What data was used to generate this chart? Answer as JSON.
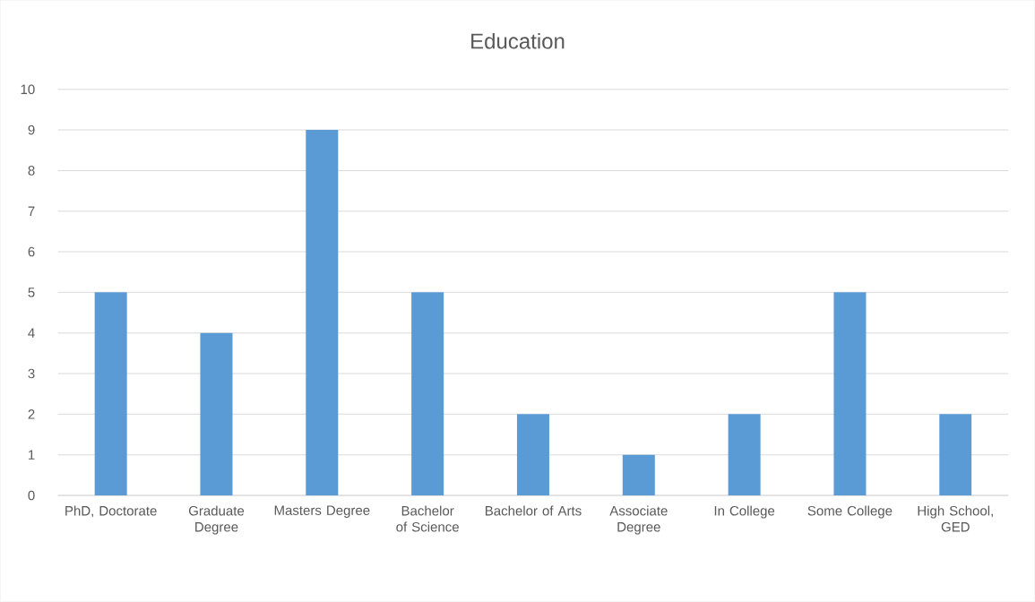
{
  "chart_data": {
    "type": "bar",
    "title": "Education",
    "categories": [
      "PhD, Doctorate",
      "Graduate Degree",
      "Masters Degree",
      "Bachelor of Science",
      "Bachelor of Arts",
      "Associate Degree",
      "In College",
      "Some College",
      "High School, GED"
    ],
    "values": [
      5,
      4,
      9,
      5,
      2,
      1,
      2,
      5,
      2
    ],
    "color": "#5b9bd5",
    "ylim": [
      0,
      10
    ],
    "yticks": [
      0,
      1,
      2,
      3,
      4,
      5,
      6,
      7,
      8,
      9,
      10
    ],
    "grid": "y"
  }
}
